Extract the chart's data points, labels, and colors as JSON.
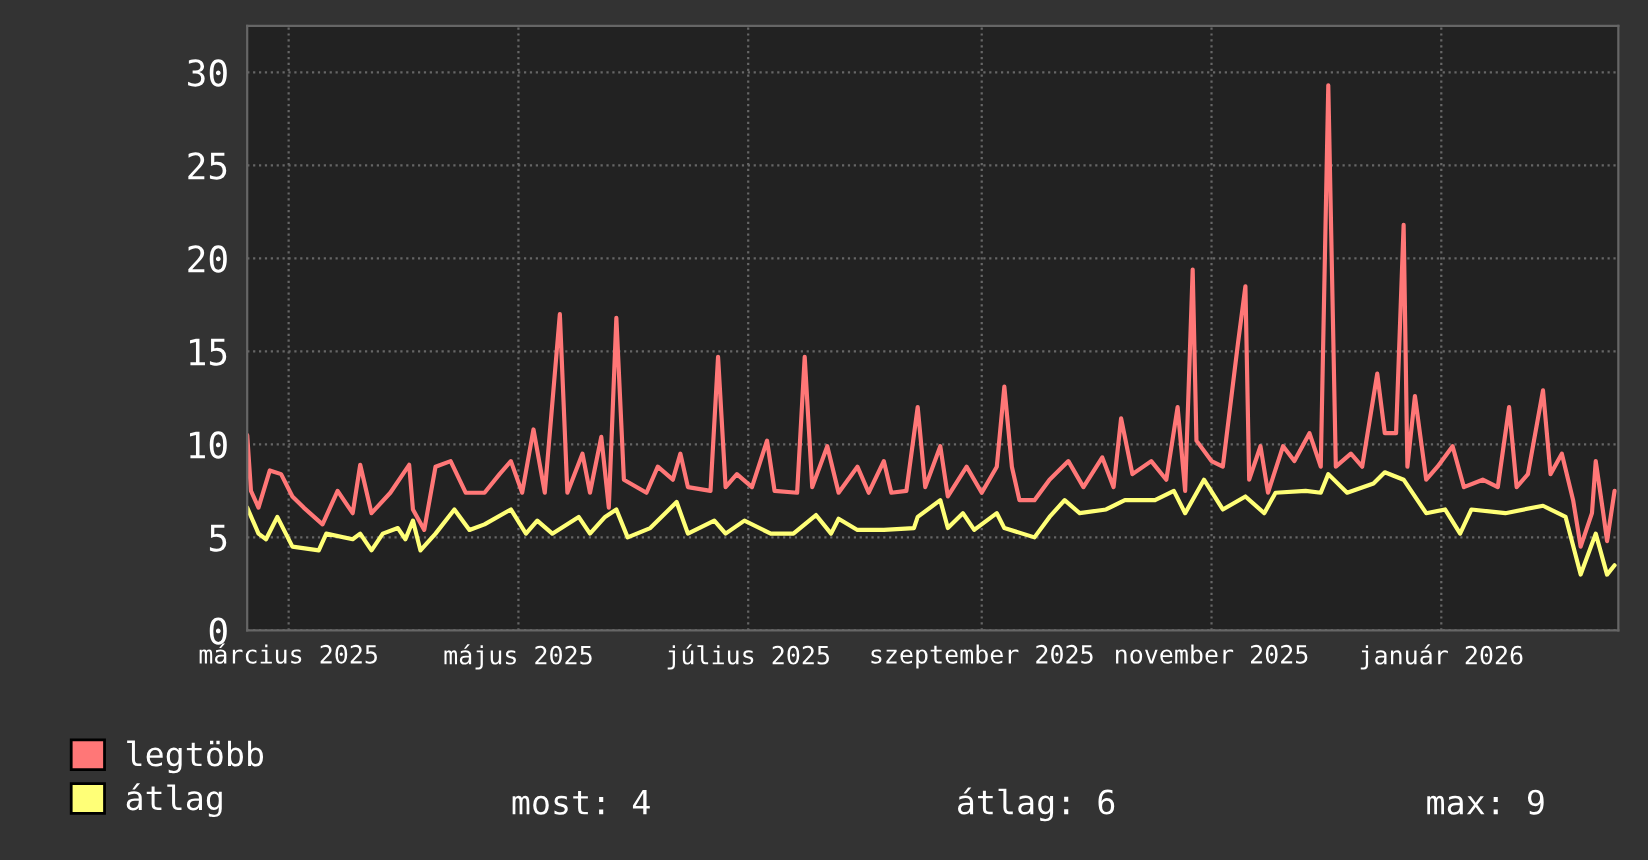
{
  "chart_data": {
    "type": "line",
    "xlim": [
      "2025-03-04",
      "2026-03-03"
    ],
    "xticks": [
      {
        "value": "2025-03-15",
        "label": "március 2025"
      },
      {
        "value": "2025-05-15",
        "label": "május 2025"
      },
      {
        "value": "2025-07-15",
        "label": "július 2025"
      },
      {
        "value": "2025-09-15",
        "label": "szeptember 2025"
      },
      {
        "value": "2025-11-15",
        "label": "november 2025"
      },
      {
        "value": "2026-01-15",
        "label": "január 2026"
      }
    ],
    "ylim": [
      0,
      32.5
    ],
    "yticks": [
      0,
      5,
      10,
      15,
      20,
      25,
      30
    ],
    "grid": true,
    "legend": "bottom",
    "series": [
      {
        "name": "legtöbb",
        "color": "#ff7777",
        "x": [
          "2025-03-04",
          "2025-03-05",
          "2025-03-07",
          "2025-03-10",
          "2025-03-13",
          "2025-03-16",
          "2025-03-19",
          "2025-03-24",
          "2025-03-28",
          "2025-04-01",
          "2025-04-03",
          "2025-04-06",
          "2025-04-11",
          "2025-04-16",
          "2025-04-17",
          "2025-04-20",
          "2025-04-23",
          "2025-04-27",
          "2025-05-01",
          "2025-05-06",
          "2025-05-10",
          "2025-05-13",
          "2025-05-16",
          "2025-05-19",
          "2025-05-22",
          "2025-05-26",
          "2025-05-28",
          "2025-06-01",
          "2025-06-03",
          "2025-06-06",
          "2025-06-08",
          "2025-06-10",
          "2025-06-12",
          "2025-06-18",
          "2025-06-21",
          "2025-06-25",
          "2025-06-27",
          "2025-06-29",
          "2025-07-05",
          "2025-07-07",
          "2025-07-09",
          "2025-07-12",
          "2025-07-16",
          "2025-07-20",
          "2025-07-22",
          "2025-07-28",
          "2025-07-30",
          "2025-08-01",
          "2025-08-05",
          "2025-08-08",
          "2025-08-13",
          "2025-08-16",
          "2025-08-20",
          "2025-08-22",
          "2025-08-26",
          "2025-08-29",
          "2025-08-31",
          "2025-09-04",
          "2025-09-06",
          "2025-09-11",
          "2025-09-15",
          "2025-09-19",
          "2025-09-21",
          "2025-09-23",
          "2025-09-25",
          "2025-09-29",
          "2025-10-03",
          "2025-10-08",
          "2025-10-12",
          "2025-10-17",
          "2025-10-20",
          "2025-10-22",
          "2025-10-25",
          "2025-10-30",
          "2025-11-03",
          "2025-11-06",
          "2025-11-08",
          "2025-11-10",
          "2025-11-11",
          "2025-11-15",
          "2025-11-18",
          "2025-11-22",
          "2025-11-24",
          "2025-11-25",
          "2025-11-28",
          "2025-11-30",
          "2025-12-04",
          "2025-12-07",
          "2025-12-11",
          "2025-12-14",
          "2025-12-16",
          "2025-12-18",
          "2025-12-22",
          "2025-12-25",
          "2025-12-29",
          "2025-12-31",
          "2026-01-03",
          "2026-01-05",
          "2026-01-06",
          "2026-01-08",
          "2026-01-11",
          "2026-01-14",
          "2026-01-18",
          "2026-01-21",
          "2026-01-26",
          "2026-01-30",
          "2026-02-02",
          "2026-02-04",
          "2026-02-07",
          "2026-02-11",
          "2026-02-13",
          "2026-02-16",
          "2026-02-19",
          "2026-02-21",
          "2026-02-24",
          "2026-02-25",
          "2026-02-27",
          "2026-02-28",
          "2026-03-02"
        ],
        "values": [
          10.5,
          7.5,
          6.6,
          8.6,
          8.4,
          7.2,
          6.6,
          5.7,
          7.5,
          6.3,
          8.9,
          6.3,
          7.4,
          8.9,
          6.5,
          5.4,
          8.8,
          9.1,
          7.4,
          7.4,
          8.4,
          9.1,
          7.4,
          10.8,
          7.4,
          17.0,
          7.4,
          9.5,
          7.4,
          10.4,
          6.6,
          16.8,
          8.1,
          7.4,
          8.8,
          8.1,
          9.5,
          7.7,
          7.5,
          14.7,
          7.7,
          8.4,
          7.7,
          10.2,
          7.5,
          7.4,
          14.7,
          7.7,
          9.9,
          7.4,
          8.8,
          7.4,
          9.1,
          7.4,
          7.5,
          12.0,
          7.7,
          9.9,
          7.2,
          8.8,
          7.4,
          8.8,
          13.1,
          8.8,
          7.0,
          7.0,
          8.1,
          9.1,
          7.7,
          9.3,
          7.7,
          11.4,
          8.4,
          9.1,
          8.1,
          12.0,
          7.5,
          19.4,
          10.2,
          9.1,
          8.8,
          15.4,
          18.5,
          8.1,
          9.9,
          7.4,
          9.9,
          9.1,
          10.6,
          8.8,
          29.3,
          8.8,
          9.5,
          8.8,
          13.8,
          10.6,
          10.6,
          21.8,
          8.8,
          12.6,
          8.1,
          8.8,
          9.9,
          7.7,
          8.1,
          7.7,
          12.0,
          7.7,
          8.4,
          12.9,
          8.4,
          9.5,
          7.0,
          4.5,
          6.3,
          9.1,
          6.3,
          4.8,
          7.5
        ]
      },
      {
        "name": "átlag",
        "color": "#ffff77",
        "x": [
          "2025-03-04",
          "2025-03-07",
          "2025-03-09",
          "2025-03-12",
          "2025-03-16",
          "2025-03-23",
          "2025-03-25",
          "2025-04-01",
          "2025-04-03",
          "2025-04-06",
          "2025-04-09",
          "2025-04-13",
          "2025-04-15",
          "2025-04-17",
          "2025-04-19",
          "2025-04-23",
          "2025-04-28",
          "2025-05-02",
          "2025-05-06",
          "2025-05-13",
          "2025-05-17",
          "2025-05-20",
          "2025-05-24",
          "2025-05-31",
          "2025-06-03",
          "2025-06-07",
          "2025-06-10",
          "2025-06-13",
          "2025-06-19",
          "2025-06-26",
          "2025-06-29",
          "2025-07-06",
          "2025-07-09",
          "2025-07-14",
          "2025-07-21",
          "2025-07-27",
          "2025-08-02",
          "2025-08-06",
          "2025-08-08",
          "2025-08-13",
          "2025-08-20",
          "2025-08-28",
          "2025-08-29",
          "2025-09-04",
          "2025-09-06",
          "2025-09-10",
          "2025-09-13",
          "2025-09-19",
          "2025-09-21",
          "2025-09-29",
          "2025-10-03",
          "2025-10-07",
          "2025-10-11",
          "2025-10-18",
          "2025-10-23",
          "2025-10-31",
          "2025-11-05",
          "2025-11-08",
          "2025-11-13",
          "2025-11-18",
          "2025-11-24",
          "2025-11-29",
          "2025-12-02",
          "2025-12-10",
          "2025-12-14",
          "2025-12-16",
          "2025-12-21",
          "2025-12-28",
          "2025-12-31",
          "2026-01-05",
          "2026-01-11",
          "2026-01-16",
          "2026-01-20",
          "2026-01-23",
          "2026-02-01",
          "2026-02-11",
          "2026-02-17",
          "2026-02-21",
          "2026-02-25",
          "2026-02-28",
          "2026-03-02"
        ],
        "values": [
          6.6,
          5.2,
          4.9,
          6.1,
          4.5,
          4.3,
          5.2,
          4.9,
          5.2,
          4.3,
          5.2,
          5.5,
          4.9,
          5.9,
          4.3,
          5.2,
          6.5,
          5.4,
          5.7,
          6.5,
          5.2,
          5.9,
          5.2,
          6.1,
          5.2,
          6.1,
          6.5,
          5.0,
          5.5,
          6.9,
          5.2,
          5.9,
          5.2,
          5.9,
          5.2,
          5.2,
          6.2,
          5.2,
          6.0,
          5.4,
          5.4,
          5.5,
          6.1,
          7.0,
          5.5,
          6.3,
          5.4,
          6.3,
          5.5,
          5.0,
          6.1,
          7.0,
          6.3,
          6.5,
          7.0,
          7.0,
          7.5,
          6.3,
          8.1,
          6.5,
          7.2,
          6.3,
          7.4,
          7.5,
          7.4,
          8.4,
          7.4,
          7.9,
          8.5,
          8.1,
          6.3,
          6.5,
          5.2,
          6.5,
          6.3,
          6.7,
          6.1,
          3.0,
          5.2,
          3.0,
          3.5
        ]
      }
    ],
    "annotations": [
      "most: 4",
      "átlag: 6",
      "max: 9"
    ]
  }
}
